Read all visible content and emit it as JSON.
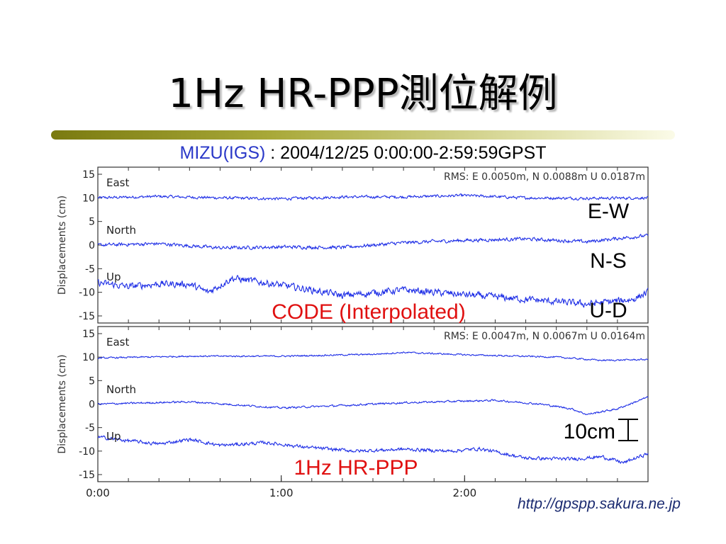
{
  "slide": {
    "title": "1Hz HR-PPP測位解例",
    "subtitle_station": "MIZU(IGS)",
    "subtitle_rest": " : 2004/12/25 0:00:00-2:59:59GPST",
    "source_url": "http://gpspp.sakura.ne.jp"
  },
  "colors": {
    "trace": "#1e2ee6",
    "overlay_label": "#e01010",
    "frame": "#333333"
  },
  "chart_data": [
    {
      "type": "line",
      "ylabel": "Displacements (cm)",
      "ylim": [
        -16,
        16
      ],
      "yticks": [
        "15",
        "10",
        "5",
        "0",
        "-5",
        "-10",
        "-15"
      ],
      "yticks_values": [
        15,
        10,
        5,
        0,
        -5,
        -10,
        -15
      ],
      "xlim": [
        0,
        180
      ],
      "rms_text": "RMS: E 0.0050m, N 0.0088m U 0.0187m",
      "overlay_label": "CODE (Interpolated)",
      "series": [
        {
          "name": "East",
          "offset": 10,
          "noise": 0.45,
          "knots": [
            [
              0,
              10
            ],
            [
              20,
              10.3
            ],
            [
              40,
              10
            ],
            [
              60,
              9.8
            ],
            [
              80,
              10.2
            ],
            [
              100,
              10.2
            ],
            [
              120,
              10.5
            ],
            [
              140,
              10
            ],
            [
              160,
              9.9
            ],
            [
              180,
              10
            ]
          ]
        },
        {
          "name": "North",
          "offset": 0,
          "noise": 0.55,
          "knots": [
            [
              0,
              0
            ],
            [
              20,
              0.3
            ],
            [
              40,
              -0.6
            ],
            [
              60,
              -0.4
            ],
            [
              80,
              -0.5
            ],
            [
              100,
              0.5
            ],
            [
              120,
              1
            ],
            [
              140,
              1.3
            ],
            [
              160,
              0.7
            ],
            [
              170,
              1.4
            ],
            [
              180,
              2
            ]
          ]
        },
        {
          "name": "Up",
          "offset": -10,
          "noise": 1.1,
          "knots": [
            [
              0,
              -8
            ],
            [
              10,
              -8.8
            ],
            [
              20,
              -8.2
            ],
            [
              30,
              -8.3
            ],
            [
              36,
              -10
            ],
            [
              44,
              -7
            ],
            [
              55,
              -8
            ],
            [
              70,
              -9.5
            ],
            [
              80,
              -10.7
            ],
            [
              100,
              -9.5
            ],
            [
              120,
              -10.5
            ],
            [
              140,
              -11.5
            ],
            [
              160,
              -12.5
            ],
            [
              175,
              -11.5
            ],
            [
              180,
              -10
            ]
          ]
        }
      ]
    },
    {
      "type": "line",
      "ylabel": "Displacements (cm)",
      "ylim": [
        -16,
        16
      ],
      "yticks": [
        "15",
        "10",
        "5",
        "0",
        "-5",
        "-10",
        "-15"
      ],
      "yticks_values": [
        15,
        10,
        5,
        0,
        -5,
        -10,
        -15
      ],
      "xlim": [
        0,
        180
      ],
      "xticks": [
        "0:00",
        "1:00",
        "2:00"
      ],
      "xticks_values": [
        0,
        60,
        120
      ],
      "rms_text": "RMS: E 0.0047m, N 0.0067m U 0.0164m",
      "overlay_label": "1Hz HR-PPP",
      "series": [
        {
          "name": "East",
          "offset": 10,
          "noise": 0.25,
          "knots": [
            [
              0,
              9.8
            ],
            [
              30,
              10.2
            ],
            [
              60,
              10.2
            ],
            [
              90,
              10.6
            ],
            [
              100,
              11
            ],
            [
              120,
              10.5
            ],
            [
              150,
              10
            ],
            [
              165,
              9.3
            ],
            [
              180,
              9.5
            ]
          ]
        },
        {
          "name": "North",
          "offset": 0,
          "noise": 0.3,
          "knots": [
            [
              0,
              0
            ],
            [
              30,
              0.5
            ],
            [
              60,
              -0.8
            ],
            [
              80,
              -0.3
            ],
            [
              100,
              0.3
            ],
            [
              130,
              0.8
            ],
            [
              145,
              0
            ],
            [
              155,
              -1
            ],
            [
              160,
              -2.2
            ],
            [
              170,
              -1
            ],
            [
              180,
              1.5
            ]
          ]
        },
        {
          "name": "Up",
          "offset": -10,
          "noise": 0.55,
          "knots": [
            [
              0,
              -7
            ],
            [
              10,
              -7.8
            ],
            [
              20,
              -8.5
            ],
            [
              30,
              -7.5
            ],
            [
              40,
              -8.8
            ],
            [
              55,
              -8.2
            ],
            [
              70,
              -9.3
            ],
            [
              85,
              -10
            ],
            [
              100,
              -9.6
            ],
            [
              115,
              -10
            ],
            [
              125,
              -9.5
            ],
            [
              140,
              -11.5
            ],
            [
              155,
              -11.7
            ],
            [
              165,
              -11.2
            ],
            [
              172,
              -12.5
            ],
            [
              180,
              -10.5
            ]
          ]
        }
      ]
    }
  ],
  "right_labels": [
    "E-W",
    "N-S",
    "U-D"
  ],
  "scale_bar_label": "10cm"
}
